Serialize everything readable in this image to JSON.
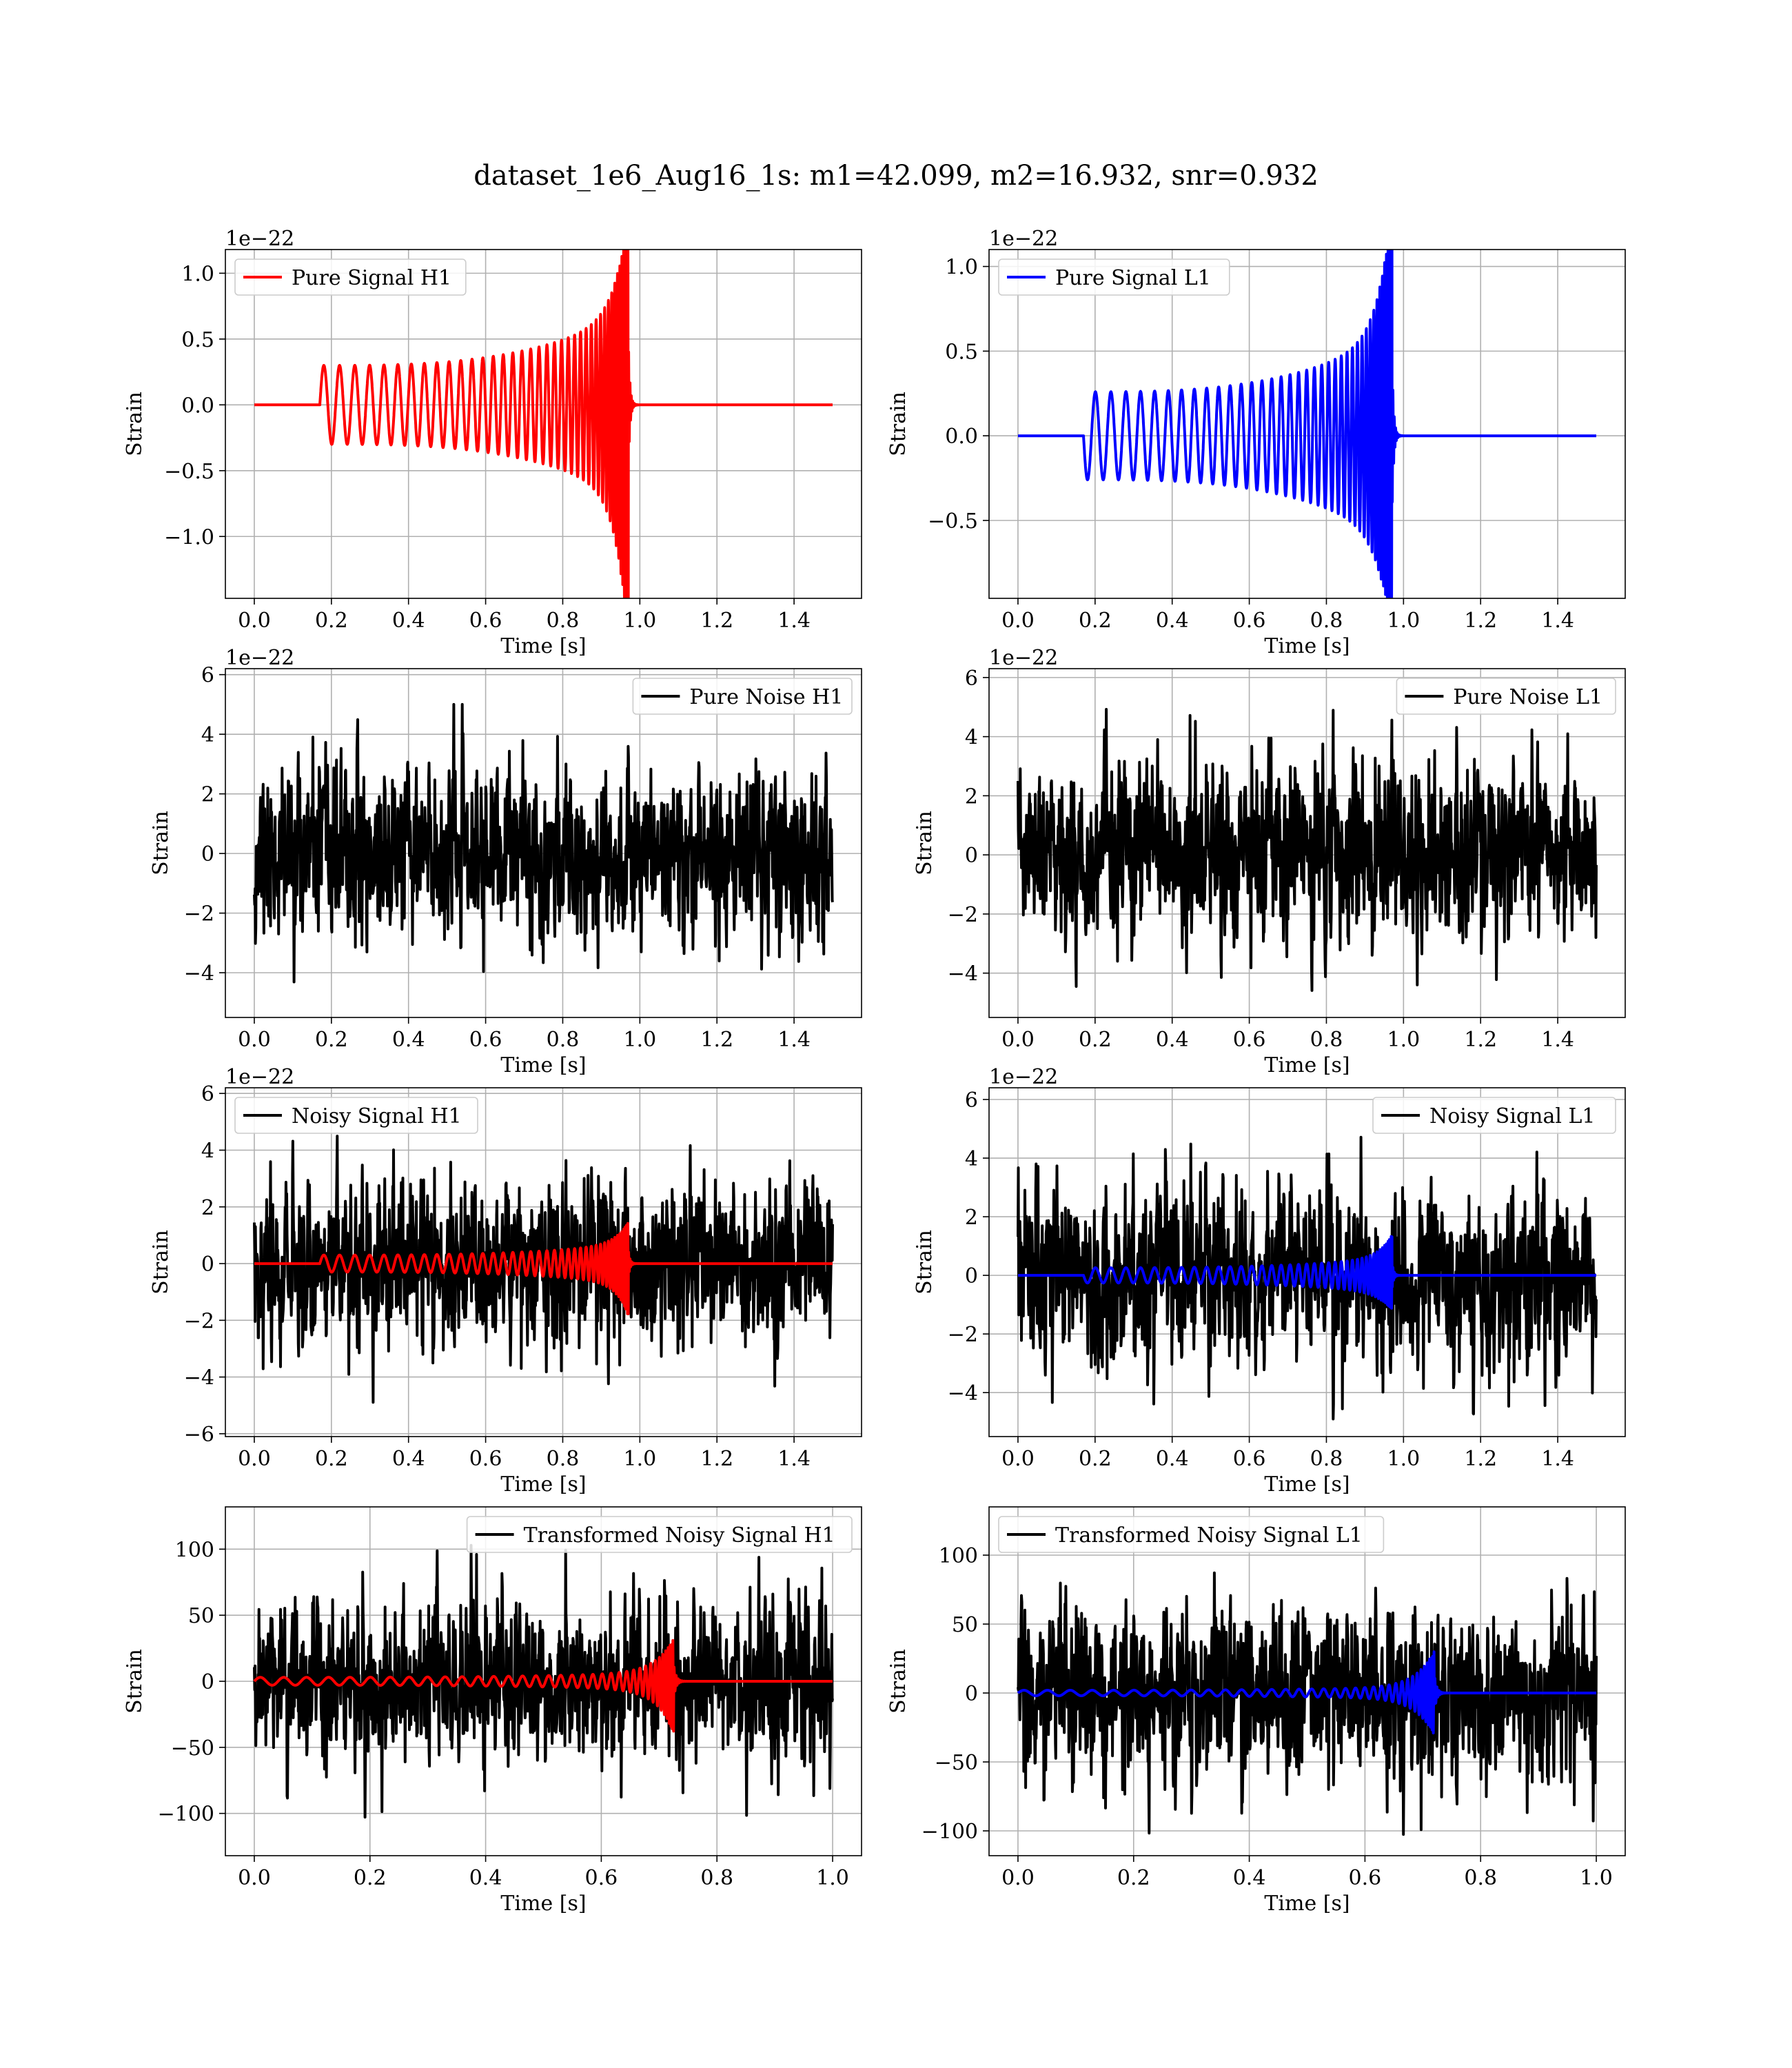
{
  "figure": {
    "title": "dataset_1e6_Aug16_1s: m1=42.099, m2=16.932, snr=0.932"
  },
  "colors": {
    "h1": "#ff0000",
    "l1": "#0000ff",
    "noise": "#000000",
    "grid": "#b0b0b0"
  },
  "chart_data": [
    {
      "type": "line",
      "panel": "pure-signal-h1",
      "xlabel": "Time [s]",
      "ylabel": "Strain",
      "offset_label": "1e−22",
      "xlim": [
        -0.075,
        1.575
      ],
      "ylim": [
        -1.47,
        1.18
      ],
      "xticks": [
        0.0,
        0.2,
        0.4,
        0.6,
        0.8,
        1.0,
        1.2,
        1.4
      ],
      "xtick_labels": [
        "0.0",
        "0.2",
        "0.4",
        "0.6",
        "0.8",
        "1.0",
        "1.2",
        "1.4"
      ],
      "yticks": [
        -1.0,
        -0.5,
        0.0,
        0.5,
        1.0
      ],
      "ytick_labels": [
        "−1.0",
        "−0.5",
        "0.0",
        "0.5",
        "1.0"
      ],
      "legend_loc": "upper-left",
      "grid": true,
      "series": [
        {
          "name": "Pure Signal H1",
          "kind": "chirp",
          "color": "#ff0000",
          "t_start": 0.17,
          "t_merge": 0.97,
          "t_end": 1.5,
          "amp_start": 0.3,
          "amp_peak_pos": 1.06,
          "amp_peak_neg": -1.35,
          "sign": 1
        }
      ]
    },
    {
      "type": "line",
      "panel": "pure-signal-l1",
      "xlabel": "Time [s]",
      "ylabel": "Strain",
      "offset_label": "1e−22",
      "xlim": [
        -0.075,
        1.575
      ],
      "ylim": [
        -0.96,
        1.1
      ],
      "xticks": [
        0.0,
        0.2,
        0.4,
        0.6,
        0.8,
        1.0,
        1.2,
        1.4
      ],
      "xtick_labels": [
        "0.0",
        "0.2",
        "0.4",
        "0.6",
        "0.8",
        "1.0",
        "1.2",
        "1.4"
      ],
      "yticks": [
        -0.5,
        0.0,
        0.5,
        1.0
      ],
      "ytick_labels": [
        "−0.5",
        "0.0",
        "0.5",
        "1.0"
      ],
      "legend_loc": "upper-left",
      "grid": true,
      "series": [
        {
          "name": "Pure Signal L1",
          "kind": "chirp",
          "color": "#0000ff",
          "t_start": 0.17,
          "t_merge": 0.97,
          "t_end": 1.5,
          "amp_start": 0.26,
          "amp_peak_pos": 1.03,
          "amp_peak_neg": -0.86,
          "sign": -1
        }
      ]
    },
    {
      "type": "line",
      "panel": "pure-noise-h1",
      "xlabel": "Time [s]",
      "ylabel": "Strain",
      "offset_label": "1e−22",
      "xlim": [
        -0.075,
        1.575
      ],
      "ylim": [
        -5.5,
        6.2
      ],
      "xticks": [
        0.0,
        0.2,
        0.4,
        0.6,
        0.8,
        1.0,
        1.2,
        1.4
      ],
      "xtick_labels": [
        "0.0",
        "0.2",
        "0.4",
        "0.6",
        "0.8",
        "1.0",
        "1.2",
        "1.4"
      ],
      "yticks": [
        -4,
        -2,
        0,
        2,
        4,
        6
      ],
      "ytick_labels": [
        "−4",
        "−2",
        "0",
        "2",
        "4",
        "6"
      ],
      "legend_loc": "upper-right",
      "grid": true,
      "series": [
        {
          "name": "Pure Noise H1",
          "kind": "noise",
          "color": "#000000",
          "t_start": 0.0,
          "t_end": 1.5,
          "seed": 11,
          "sigma": 1.35,
          "clip": [
            -4.9,
            5.0
          ],
          "n": 1500
        }
      ]
    },
    {
      "type": "line",
      "panel": "pure-noise-l1",
      "xlabel": "Time [s]",
      "ylabel": "Strain",
      "offset_label": "1e−22",
      "xlim": [
        -0.075,
        1.575
      ],
      "ylim": [
        -5.5,
        6.3
      ],
      "xticks": [
        0.0,
        0.2,
        0.4,
        0.6,
        0.8,
        1.0,
        1.2,
        1.4
      ],
      "xtick_labels": [
        "0.0",
        "0.2",
        "0.4",
        "0.6",
        "0.8",
        "1.0",
        "1.2",
        "1.4"
      ],
      "yticks": [
        -4,
        -2,
        0,
        2,
        4,
        6
      ],
      "ytick_labels": [
        "−4",
        "−2",
        "0",
        "2",
        "4",
        "6"
      ],
      "legend_loc": "upper-right",
      "grid": true,
      "series": [
        {
          "name": "Pure Noise L1",
          "kind": "noise",
          "color": "#000000",
          "t_start": 0.0,
          "t_end": 1.5,
          "seed": 23,
          "sigma": 1.4,
          "clip": [
            -5.0,
            5.9
          ],
          "n": 1500
        }
      ]
    },
    {
      "type": "line",
      "panel": "noisy-signal-h1",
      "xlabel": "Time [s]",
      "ylabel": "Strain",
      "offset_label": "1e−22",
      "xlim": [
        -0.075,
        1.575
      ],
      "ylim": [
        -6.1,
        6.2
      ],
      "xticks": [
        0.0,
        0.2,
        0.4,
        0.6,
        0.8,
        1.0,
        1.2,
        1.4
      ],
      "xtick_labels": [
        "0.0",
        "0.2",
        "0.4",
        "0.6",
        "0.8",
        "1.0",
        "1.2",
        "1.4"
      ],
      "yticks": [
        -6,
        -4,
        -2,
        0,
        2,
        4,
        6
      ],
      "ytick_labels": [
        "−6",
        "−4",
        "−2",
        "0",
        "2",
        "4",
        "6"
      ],
      "legend_loc": "upper-left",
      "grid": true,
      "series": [
        {
          "name": "Noisy Signal H1",
          "kind": "noise",
          "color": "#000000",
          "t_start": 0.0,
          "t_end": 1.5,
          "seed": 37,
          "sigma": 1.4,
          "clip": [
            -5.6,
            5.2
          ],
          "n": 1500
        },
        {
          "name": "",
          "kind": "chirp",
          "color": "#ff0000",
          "t_start": 0.17,
          "t_merge": 0.97,
          "t_end": 1.5,
          "amp_start": 0.3,
          "amp_peak_pos": 1.06,
          "amp_peak_neg": -1.35,
          "sign": 1
        }
      ]
    },
    {
      "type": "line",
      "panel": "noisy-signal-l1",
      "xlabel": "Time [s]",
      "ylabel": "Strain",
      "offset_label": "1e−22",
      "xlim": [
        -0.075,
        1.575
      ],
      "ylim": [
        -5.5,
        6.4
      ],
      "xticks": [
        0.0,
        0.2,
        0.4,
        0.6,
        0.8,
        1.0,
        1.2,
        1.4
      ],
      "xtick_labels": [
        "0.0",
        "0.2",
        "0.4",
        "0.6",
        "0.8",
        "1.0",
        "1.2",
        "1.4"
      ],
      "yticks": [
        -4,
        -2,
        0,
        2,
        4,
        6
      ],
      "ytick_labels": [
        "−4",
        "−2",
        "0",
        "2",
        "4",
        "6"
      ],
      "legend_loc": "upper-right",
      "grid": true,
      "series": [
        {
          "name": "Noisy Signal L1",
          "kind": "noise",
          "color": "#000000",
          "t_start": 0.0,
          "t_end": 1.5,
          "seed": 53,
          "sigma": 1.45,
          "clip": [
            -4.9,
            6.0
          ],
          "n": 1500
        },
        {
          "name": "",
          "kind": "chirp",
          "color": "#0000ff",
          "t_start": 0.17,
          "t_merge": 0.97,
          "t_end": 1.5,
          "amp_start": 0.26,
          "amp_peak_pos": 1.03,
          "amp_peak_neg": -0.86,
          "sign": -1
        }
      ]
    },
    {
      "type": "line",
      "panel": "transformed-noisy-signal-h1",
      "xlabel": "Time [s]",
      "ylabel": "Strain",
      "offset_label": "",
      "xlim": [
        -0.05,
        1.05
      ],
      "ylim": [
        -132,
        132
      ],
      "xticks": [
        0.0,
        0.2,
        0.4,
        0.6,
        0.8,
        1.0
      ],
      "xtick_labels": [
        "0.0",
        "0.2",
        "0.4",
        "0.6",
        "0.8",
        "1.0"
      ],
      "yticks": [
        -100,
        -50,
        0,
        50,
        100
      ],
      "ytick_labels": [
        "−100",
        "−50",
        "0",
        "50",
        "100"
      ],
      "legend_loc": "upper-right",
      "grid": true,
      "series": [
        {
          "name": "Transformed Noisy Signal H1",
          "kind": "noise",
          "color": "#000000",
          "t_start": 0.0,
          "t_end": 1.0,
          "seed": 71,
          "sigma": 30,
          "clip": [
            -118,
            128
          ],
          "n": 1500
        },
        {
          "name": "",
          "kind": "chirp",
          "color": "#ff0000",
          "t_start": 0.0,
          "t_merge": 0.725,
          "t_end": 1.0,
          "amp_start": 3,
          "amp_peak_pos": 28,
          "amp_peak_neg": -35,
          "sign": 1
        }
      ]
    },
    {
      "type": "line",
      "panel": "transformed-noisy-signal-l1",
      "xlabel": "Time [s]",
      "ylabel": "Strain",
      "offset_label": "",
      "xlim": [
        -0.05,
        1.05
      ],
      "ylim": [
        -118,
        135
      ],
      "xticks": [
        0.0,
        0.2,
        0.4,
        0.6,
        0.8,
        1.0
      ],
      "xtick_labels": [
        "0.0",
        "0.2",
        "0.4",
        "0.6",
        "0.8",
        "1.0"
      ],
      "yticks": [
        -100,
        -50,
        0,
        50,
        100
      ],
      "ytick_labels": [
        "−100",
        "−50",
        "0",
        "50",
        "100"
      ],
      "legend_loc": "upper-left",
      "grid": true,
      "series": [
        {
          "name": "Transformed Noisy Signal L1",
          "kind": "noise",
          "color": "#000000",
          "t_start": 0.0,
          "t_end": 1.0,
          "seed": 89,
          "sigma": 30,
          "clip": [
            -108,
            123
          ],
          "n": 1500
        },
        {
          "name": "",
          "kind": "chirp",
          "color": "#0000ff",
          "t_start": 0.0,
          "t_merge": 0.72,
          "t_end": 1.0,
          "amp_start": 2,
          "amp_peak_pos": 28,
          "amp_peak_neg": -28,
          "sign": 1
        }
      ]
    }
  ]
}
